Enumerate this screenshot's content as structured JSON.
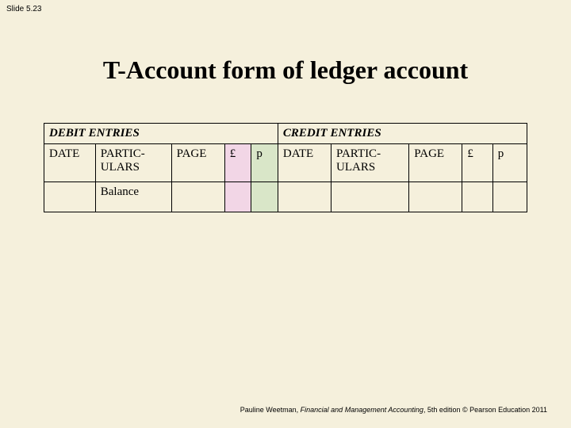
{
  "slide_label": "Slide 5.23",
  "title": "T-Account form of ledger account",
  "table": {
    "left_header": "DEBIT ENTRIES",
    "right_header": "CREDIT ENTRIES",
    "cols": {
      "date": "DATE",
      "particulars": "PARTIC-ULARS",
      "page": "PAGE",
      "pound": "£",
      "p": "p"
    },
    "balance_label": "Balance"
  },
  "footer": {
    "author": "Pauline Weetman, ",
    "book": "Financial and Management Accounting",
    "rest": ", 5th edition © Pearson Education 2011"
  },
  "colors": {
    "background": "#f5f0dc",
    "pound_col": "#f2d6e6",
    "p_col": "#d9e6c8",
    "border": "#000000"
  }
}
